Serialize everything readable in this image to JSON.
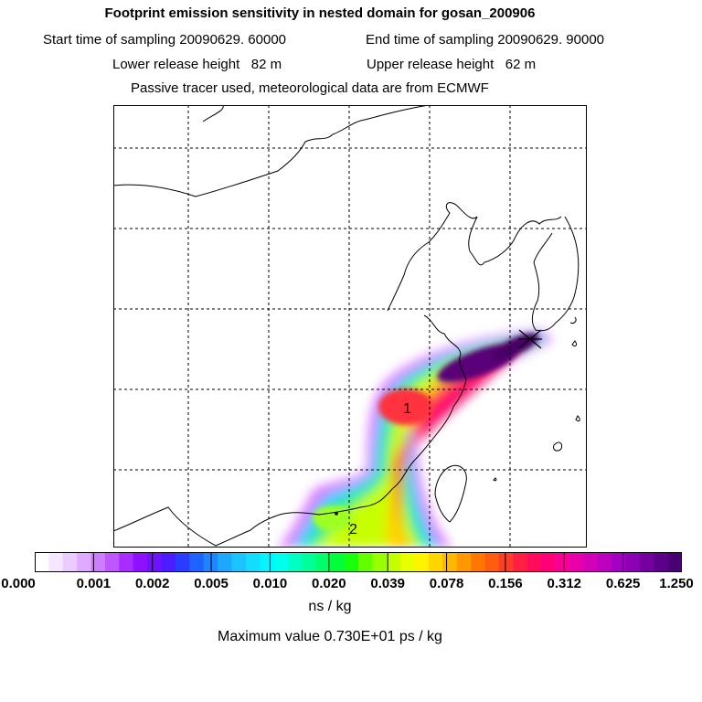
{
  "header": {
    "title": "Footprint emission sensitivity in nested domain for gosan_200906",
    "start_label": "Start time of sampling 20090629. 60000",
    "end_label": "End time of sampling 20090629. 90000",
    "lower_label": "Lower release height   82 m",
    "upper_label": "Upper release height   62 m",
    "tracer_label": "Passive tracer used, meteorological data are from ECMWF"
  },
  "map": {
    "annotations": [
      "1",
      "2"
    ],
    "marker": "release-site-marker"
  },
  "colorbar": {
    "ticks": [
      "0.000",
      "0.001",
      "0.002",
      "0.005",
      "0.010",
      "0.020",
      "0.039",
      "0.078",
      "0.156",
      "0.312",
      "0.625",
      "1.250"
    ],
    "colors": [
      "#ffffff",
      "#f7e6ff",
      "#eccbff",
      "#dfa9ff",
      "#cf7dff",
      "#be57ff",
      "#a82cff",
      "#8e10ff",
      "#6f12ff",
      "#4b1cff",
      "#2a3cff",
      "#1f63ff",
      "#1f85ff",
      "#1ea7ff",
      "#1bc4ff",
      "#12dcff",
      "#06f2ff",
      "#00ffec",
      "#00ffc2",
      "#00ff99",
      "#00ff6b",
      "#00ff3a",
      "#16ff0f",
      "#62ff00",
      "#98ff00",
      "#c4ff00",
      "#e8ff00",
      "#fff400",
      "#ffd600",
      "#ffb700",
      "#ff9700",
      "#ff7700",
      "#ff5c10",
      "#ff3e28",
      "#ff1f42",
      "#ff0b5e",
      "#ff007a",
      "#f80095",
      "#e800aa",
      "#d400b8",
      "#bc00c2",
      "#a300c4",
      "#8c00b6",
      "#7400a1",
      "#5c0089",
      "#480072"
    ],
    "unit": "ns / kg",
    "max_value_label": "Maximum value  0.730E+01 ps / kg"
  }
}
